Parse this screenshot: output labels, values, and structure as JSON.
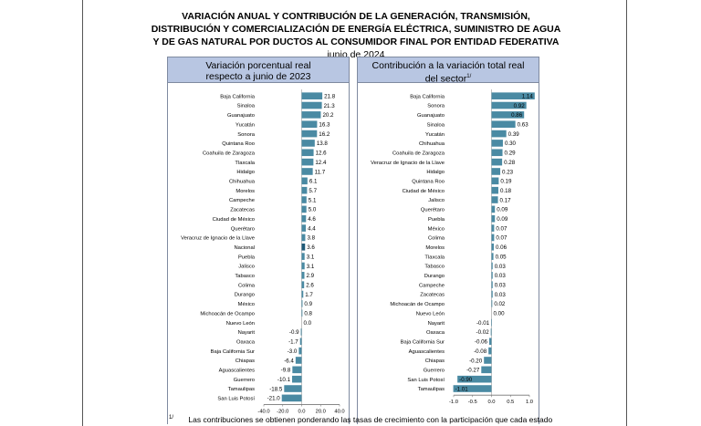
{
  "header": {
    "title_lines": [
      "VARIACIÓN ANUAL Y CONTRIBUCIÓN DE LA GENERACIÓN, TRANSMISIÓN,",
      "DISTRIBUCIÓN Y COMERCIALIZACIÓN DE ENERGÍA ELÉCTRICA, SUMINISTRO DE AGUA",
      "Y DE GAS NATURAL POR DUCTOS AL CONSUMIDOR FINAL POR ENTIDAD FEDERATIVA"
    ],
    "date": "junio de 2024"
  },
  "footnote": {
    "mark": "1/",
    "text": "Las contribuciones se obtienen ponderando las tasas de crecimiento con la participación que cada estado"
  },
  "chart_data": [
    {
      "type": "bar",
      "orientation": "horizontal",
      "title": [
        "Variación porcentual real",
        "respecto a junio de 2023"
      ],
      "title_sup": "",
      "xlim": [
        -40,
        40
      ],
      "xticks": [
        "-40.0",
        "-20.0",
        "0.0",
        "20.0",
        "40.0"
      ],
      "xtick_values": [
        -40,
        -20,
        0,
        20,
        40
      ],
      "value_decimals": 1,
      "bar_color": "#4a8aa3",
      "categories": [
        "Baja California",
        "Sinaloa",
        "Guanajuato",
        "Yucatán",
        "Sonora",
        "Quintana Roo",
        "Coahuila de Zaragoza",
        "Tlaxcala",
        "Hidalgo",
        "Chihuahua",
        "Morelos",
        "Campeche",
        "Zacatecas",
        "Ciudad de México",
        "Querétaro",
        "Veracruz de Ignacio de la Llave",
        "Nacional",
        "Puebla",
        "Jalisco",
        "Tabasco",
        "Colima",
        "Durango",
        "México",
        "Michoacán de Ocampo",
        "Nuevo León",
        "Nayarit",
        "Oaxaca",
        "Baja California Sur",
        "Chiapas",
        "Aguascalientes",
        "Guerrero",
        "Tamaulipas",
        "San Luis Potosí"
      ],
      "values": [
        21.8,
        21.3,
        20.2,
        16.3,
        16.2,
        13.8,
        12.6,
        12.4,
        11.7,
        6.1,
        5.7,
        5.1,
        5.0,
        4.6,
        4.4,
        3.8,
        3.6,
        3.1,
        3.1,
        2.9,
        2.6,
        1.7,
        0.9,
        0.8,
        0.0,
        -0.9,
        -1.7,
        -3.0,
        -6.4,
        -9.8,
        -10.1,
        -18.5,
        -21.0
      ],
      "value_labels": [
        "21.8",
        "21.3",
        "20.2",
        "16.3",
        "16.2",
        "13.8",
        "12.6",
        "12.4",
        "11.7",
        "6.1",
        "5.7",
        "5.1",
        "5.0",
        "4.6",
        "4.4",
        "3.8",
        "3.6",
        "3.1",
        "3.1",
        "2.9",
        "2.6",
        "1.7",
        "0.9",
        "0.8",
        "0.0",
        "-0.9",
        "-1.7",
        "-3.0",
        "-6.4",
        "-9.8",
        "-10.1",
        "-18.5",
        "-21.0"
      ],
      "highlight": "Nacional",
      "highlight_color": "#1f5a78"
    },
    {
      "type": "bar",
      "orientation": "horizontal",
      "title": [
        "Contribución a la variación total real",
        "del sector"
      ],
      "title_sup": "1/",
      "xlim": [
        -1.0,
        1.0
      ],
      "xticks": [
        "-1.0",
        "-0.5",
        "0.0",
        "0.5",
        "1.0"
      ],
      "xtick_values": [
        -1.0,
        -0.5,
        0.0,
        0.5,
        1.0
      ],
      "value_decimals": 2,
      "bar_color": "#4a8aa3",
      "categories": [
        "Baja California",
        "Sonora",
        "Guanajuato",
        "Sinaloa",
        "Yucatán",
        "Chihuahua",
        "Coahuila de Zaragoza",
        "Veracruz de Ignacio de la Llave",
        "Hidalgo",
        "Quintana Roo",
        "Ciudad de México",
        "Jalisco",
        "Querétaro",
        "Puebla",
        "México",
        "Colima",
        "Morelos",
        "Tlaxcala",
        "Tabasco",
        "Durango",
        "Campeche",
        "Zacatecas",
        "Michoacán de Ocampo",
        "Nuevo León",
        "Nayarit",
        "Oaxaca",
        "Baja California Sur",
        "Aguascalientes",
        "Chiapas",
        "Guerrero",
        "San Luis Potosí",
        "Tamaulipas"
      ],
      "values": [
        1.14,
        0.92,
        0.86,
        0.63,
        0.39,
        0.3,
        0.29,
        0.28,
        0.23,
        0.19,
        0.18,
        0.17,
        0.09,
        0.09,
        0.07,
        0.07,
        0.06,
        0.05,
        0.03,
        0.03,
        0.03,
        0.03,
        0.02,
        0.0,
        -0.01,
        -0.02,
        -0.06,
        -0.08,
        -0.2,
        -0.27,
        -0.9,
        -1.01
      ],
      "value_labels": [
        "1.14",
        "0.92",
        "0.86",
        "0.63",
        "0.39",
        "0.30",
        "0.29",
        "0.28",
        "0.23",
        "0.19",
        "0.18",
        "0.17",
        "0.09",
        "0.09",
        "0.07",
        "0.07",
        "0.06",
        "0.05",
        "0.03",
        "0.03",
        "0.03",
        "0.03",
        "0.02",
        "0.00",
        "-0.01",
        "-0.02",
        "-0.06",
        "-0.08",
        "-0.20",
        "-0.27",
        "-0.90",
        "-1.01"
      ],
      "highlight": "",
      "highlight_color": "#1f5a78"
    }
  ]
}
